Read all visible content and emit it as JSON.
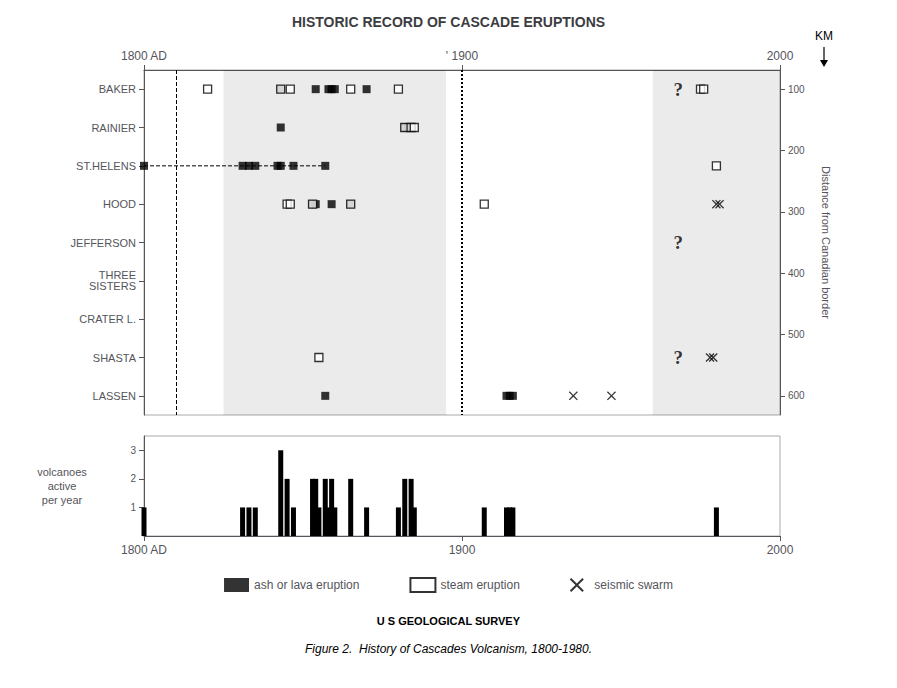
{
  "chart_data": [
    {
      "type": "scatter",
      "title": "HISTORIC RECORD OF CASCADE ERUPTIONS",
      "orientation": "horizontal",
      "categories": [
        "BAKER",
        "RAINIER",
        "ST.HELENS",
        "HOOD",
        "JEFFERSON",
        "THREE\nSISTERS",
        "CRATER L.",
        "SHASTA",
        "LASSEN"
      ],
      "xlim": [
        1800,
        2000
      ],
      "xticks": [
        {
          "value": 1800,
          "label": "1800 AD"
        },
        {
          "value": 1900,
          "label": "' 1900"
        },
        2000
      ],
      "y2label": "Distance from Canadian border",
      "y2lim": [
        68.75,
        631.25
      ],
      "y2ticks": [
        100,
        200,
        300,
        400,
        500,
        600
      ],
      "grid": false,
      "legend": "bottom",
      "shaded_regions": [
        [
          1825,
          1895
        ],
        [
          1960,
          2000
        ]
      ],
      "vlines": [
        {
          "x": 1900,
          "line_style": "dotted"
        },
        {
          "x": 1810,
          "line_style": "dashed"
        }
      ],
      "series": [
        {
          "name": "ash or lava eruption",
          "marker": "square",
          "color": "#000000",
          "x": [
            1843,
            1854,
            1858,
            1859,
            1860,
            1870,
            1843,
            1882,
            1883,
            1884,
            1800,
            1831,
            1833,
            1835,
            1842,
            1843,
            1847,
            1857,
            1853,
            1854,
            1859,
            1865,
            1857,
            1914,
            1915,
            1916
          ],
          "y": [
            "BAKER",
            "BAKER",
            "BAKER",
            "BAKER",
            "BAKER",
            "BAKER",
            "RAINIER",
            "RAINIER",
            "RAINIER",
            "RAINIER",
            "ST.HELENS",
            "ST.HELENS",
            "ST.HELENS",
            "ST.HELENS",
            "ST.HELENS",
            "ST.HELENS",
            "ST.HELENS",
            "ST.HELENS",
            "HOOD",
            "HOOD",
            "HOOD",
            "HOOD",
            "LASSEN",
            "LASSEN",
            "LASSEN",
            "LASSEN"
          ]
        },
        {
          "name": "steam eruption",
          "marker": "open_square",
          "color": "#000000",
          "x": [
            1820,
            1843,
            1846,
            1865,
            1880,
            1975,
            1976,
            1882,
            1884,
            1885,
            1980,
            1845,
            1846,
            1853,
            1865,
            1907,
            1855
          ],
          "y": [
            "BAKER",
            "BAKER",
            "BAKER",
            "BAKER",
            "BAKER",
            "BAKER",
            "BAKER",
            "RAINIER",
            "RAINIER",
            "RAINIER",
            "ST.HELENS",
            "HOOD",
            "HOOD",
            "HOOD",
            "HOOD",
            "HOOD",
            "SHASTA"
          ]
        },
        {
          "name": "seismic swarm",
          "marker": "x",
          "color": "#000000",
          "x": [
            1980,
            1981,
            1978,
            1979,
            1935,
            1947
          ],
          "y": [
            "HOOD",
            "HOOD",
            "SHASTA",
            "SHASTA",
            "LASSEN",
            "LASSEN"
          ]
        },
        {
          "type": "line",
          "line_style": "dashed",
          "color": "#000000",
          "x": [
            1800,
            1831,
            1833,
            1835,
            1842,
            1843,
            1847,
            1857
          ],
          "y": [
            "ST.HELENS",
            "ST.HELENS",
            "ST.HELENS",
            "ST.HELENS",
            "ST.HELENS",
            "ST.HELENS",
            "ST.HELENS",
            "ST.HELENS"
          ]
        }
      ],
      "annotations": [
        {
          "text": "?",
          "x": 1968,
          "y": "BAKER"
        },
        {
          "text": "?",
          "x": 1968,
          "y": "JEFFERSON"
        },
        {
          "text": "?",
          "x": 1968,
          "y": "SHASTA"
        },
        {
          "text": "KM"
        }
      ]
    },
    {
      "type": "bar",
      "x": [
        1800,
        1831,
        1833,
        1835,
        1843,
        1845,
        1847,
        1853,
        1854,
        1855,
        1857,
        1858,
        1859,
        1860,
        1865,
        1870,
        1880,
        1882,
        1884,
        1885,
        1907,
        1914,
        1915,
        1916,
        1980
      ],
      "values": [
        1,
        1,
        1,
        1,
        3,
        2,
        1,
        2,
        2,
        1,
        2,
        1,
        2,
        1,
        2,
        1,
        1,
        2,
        2,
        1,
        1,
        1,
        1,
        1,
        1
      ],
      "color": "#000000",
      "xlim": [
        1800,
        2000
      ],
      "xticks": [
        {
          "value": 1800,
          "label": "1800 AD"
        },
        1900,
        2000
      ],
      "ylim": [
        0,
        3.5
      ],
      "yticks": [
        1,
        2,
        3
      ],
      "ylabel": "volcanoes\nactive\nper year",
      "grid": false,
      "annotations": [
        {
          "text": "U S GEOLOGICAL SURVEY"
        },
        {
          "text": "Figure 2.  History of Cascades Volcanism, 1800-1980."
        }
      ]
    }
  ]
}
